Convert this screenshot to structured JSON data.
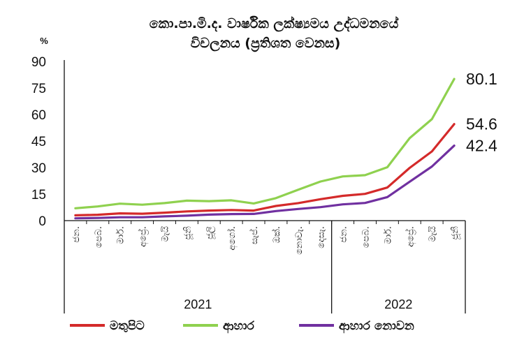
{
  "chart_data": {
    "type": "line",
    "title_line1": "කො.පා.මි.ද. වාර්ෂික ලක්ෂ්‍යමය උද්ධමනයේ",
    "title_line2": "විචලනය (ප්‍රතිශත වෙනස)",
    "unit_label": "%",
    "ylim": [
      0,
      90
    ],
    "y_ticks": [
      "0",
      "15",
      "30",
      "45",
      "60",
      "75",
      "90"
    ],
    "categories": [
      "ජන.",
      "පෙබ.",
      "මාර්.",
      "අප්‍රේ.",
      "මැයි",
      "ජූනි",
      "ජූලි",
      "අගෝ.",
      "සැප්.",
      "ඔක්.",
      "නොවැ.",
      "දෙසැ.",
      "ජන.",
      "පෙබ.",
      "මාර්.",
      "අප්‍රේ.",
      "මැයි",
      "ජූනි"
    ],
    "year_groups": [
      {
        "label": "2021",
        "count": 12
      },
      {
        "label": "2022",
        "count": 6
      }
    ],
    "series": [
      {
        "name": "මතුපිට",
        "color": "#d42a2a",
        "end_label": "54.6",
        "values": [
          3.0,
          3.3,
          4.1,
          3.9,
          4.5,
          5.2,
          5.7,
          6.0,
          5.7,
          8.3,
          9.9,
          12.1,
          14.0,
          15.1,
          18.7,
          29.8,
          39.1,
          54.6
        ]
      },
      {
        "name": "ආහාර",
        "color": "#8fd14f",
        "end_label": "80.1",
        "values": [
          7.0,
          8.0,
          9.6,
          9.0,
          9.9,
          11.3,
          11.0,
          11.5,
          9.7,
          12.7,
          17.5,
          22.1,
          25.0,
          25.7,
          30.2,
          46.6,
          57.4,
          80.1
        ]
      },
      {
        "name": "ආහාර නොවන",
        "color": "#7030a0",
        "end_label": "42.4",
        "values": [
          1.3,
          1.5,
          1.9,
          1.9,
          2.4,
          2.8,
          3.4,
          3.7,
          3.8,
          5.4,
          6.6,
          7.6,
          9.2,
          10.0,
          13.3,
          22.0,
          30.6,
          42.4
        ]
      }
    ]
  }
}
